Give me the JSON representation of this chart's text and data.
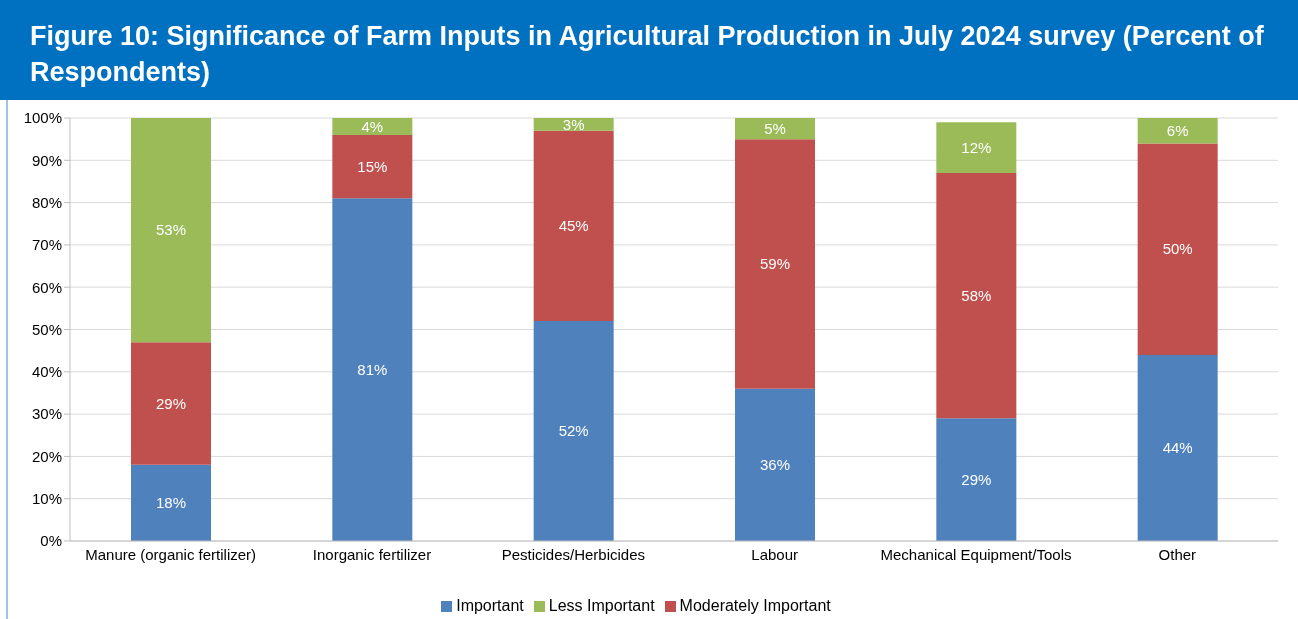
{
  "chart_data": {
    "type": "bar",
    "stacked": true,
    "title": "Figure 10: Significance of Farm Inputs in Agricultural Production in July 2024 survey (Percent of Respondents)",
    "categories": [
      "Manure (organic fertilizer)",
      "Inorganic fertilizer",
      "Pesticides/Herbicides",
      "Labour",
      "Mechanical Equipment/Tools",
      "Other"
    ],
    "series": [
      {
        "name": "Important",
        "color": "#4f81bd",
        "values": [
          18,
          81,
          52,
          36,
          29,
          44
        ],
        "value_labels": [
          "18%",
          "81%",
          "52%",
          "36%",
          "29%",
          "44%"
        ]
      },
      {
        "name": "Moderately Important",
        "color": "#c0504d",
        "values": [
          29,
          15,
          45,
          59,
          58,
          50
        ],
        "value_labels": [
          "29%",
          "15%",
          "45%",
          "59%",
          "58%",
          "50%"
        ]
      },
      {
        "name": "Less Important",
        "color": "#9bbb59",
        "values": [
          53,
          4,
          3,
          5,
          12,
          6
        ],
        "value_labels": [
          "53%",
          "4%",
          "3%",
          "5%",
          "12%",
          "6%"
        ]
      }
    ],
    "ylim": [
      0,
      100
    ],
    "yticks": [
      {
        "value": 0,
        "label": "0%"
      },
      {
        "value": 10,
        "label": "10%"
      },
      {
        "value": 20,
        "label": "20%"
      },
      {
        "value": 30,
        "label": "30%"
      },
      {
        "value": 40,
        "label": "40%"
      },
      {
        "value": 50,
        "label": "50%"
      },
      {
        "value": 60,
        "label": "60%"
      },
      {
        "value": 70,
        "label": "70%"
      },
      {
        "value": 80,
        "label": "80%"
      },
      {
        "value": 90,
        "label": "90%"
      },
      {
        "value": 100,
        "label": "100%"
      }
    ],
    "grid": "y",
    "legend": "bottom"
  }
}
